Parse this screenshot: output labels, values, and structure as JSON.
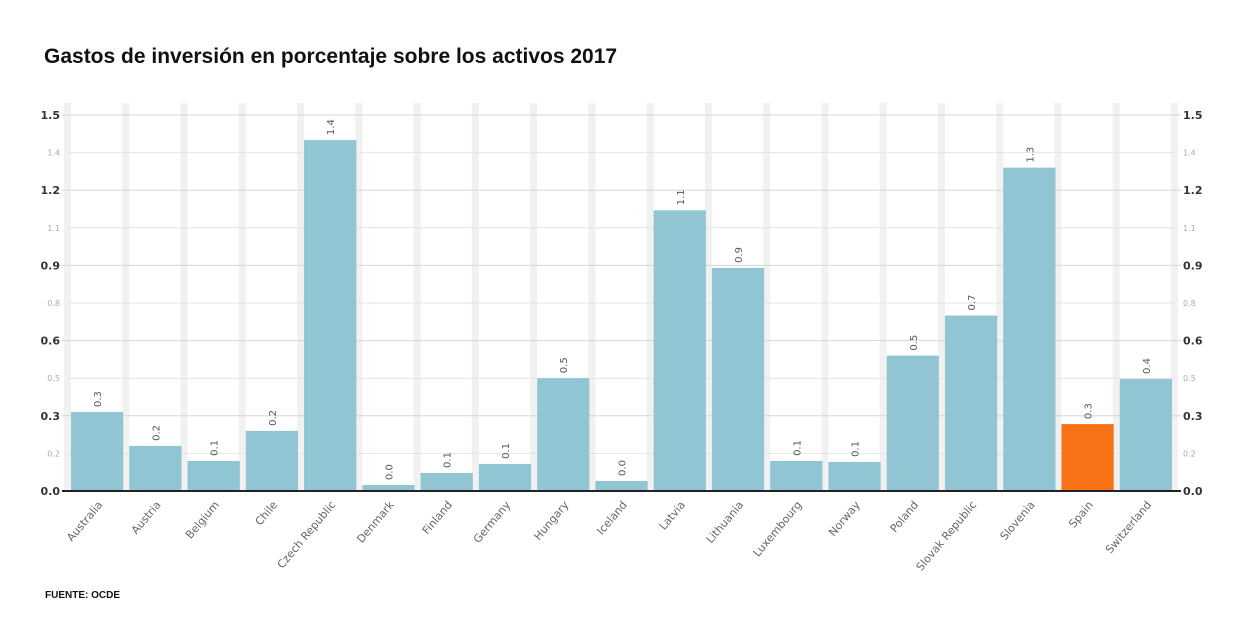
{
  "chart_data": {
    "type": "bar",
    "title": "Gastos de inversión en porcentaje sobre los activos 2017",
    "source": "FUENTE: OCDE",
    "xlabel": "",
    "ylabel": "",
    "ylim": [
      0,
      1.5
    ],
    "grid": true,
    "y_ticks_major": [
      {
        "v": 0,
        "label": "0.0"
      },
      {
        "v": 0.3,
        "label": "0.3"
      },
      {
        "v": 0.6,
        "label": "0.6"
      },
      {
        "v": 0.9,
        "label": "0.9"
      },
      {
        "v": 1.2,
        "label": "1.2"
      },
      {
        "v": 1.5,
        "label": "1.5"
      }
    ],
    "y_ticks_minor": [
      {
        "v": 0.15,
        "label": "0.2"
      },
      {
        "v": 0.45,
        "label": "0.5"
      },
      {
        "v": 0.75,
        "label": "0.8"
      },
      {
        "v": 1.05,
        "label": "1.1"
      },
      {
        "v": 1.35,
        "label": "1.4"
      }
    ],
    "categories": [
      "Australia",
      "Austria",
      "Belgium",
      "Chile",
      "Czech Republic",
      "Denmark",
      "Finland",
      "Germany",
      "Hungary",
      "Iceland",
      "Latvia",
      "Lithuania",
      "Luxembourg",
      "Norway",
      "Poland",
      "Slovak Republic",
      "Slovenia",
      "Spain",
      "Switzerland"
    ],
    "values": [
      0.315,
      0.18,
      0.12,
      0.24,
      1.4,
      0.024,
      0.072,
      0.108,
      0.45,
      0.04,
      1.12,
      0.89,
      0.12,
      0.116,
      0.54,
      0.7,
      1.29,
      0.267,
      0.447
    ],
    "data_labels": [
      "0.3",
      "0.2",
      "0.1",
      "0.2",
      "1.4",
      "0.0",
      "0.1",
      "0.1",
      "0.5",
      "0.0",
      "1.1",
      "0.9",
      "0.1",
      "0.1",
      "0.5",
      "0.7",
      "1.3",
      "0.3",
      "0.4"
    ],
    "highlight": "Spain",
    "colors": {
      "bar": "#92c5d3",
      "highlight": "#f97316"
    }
  }
}
